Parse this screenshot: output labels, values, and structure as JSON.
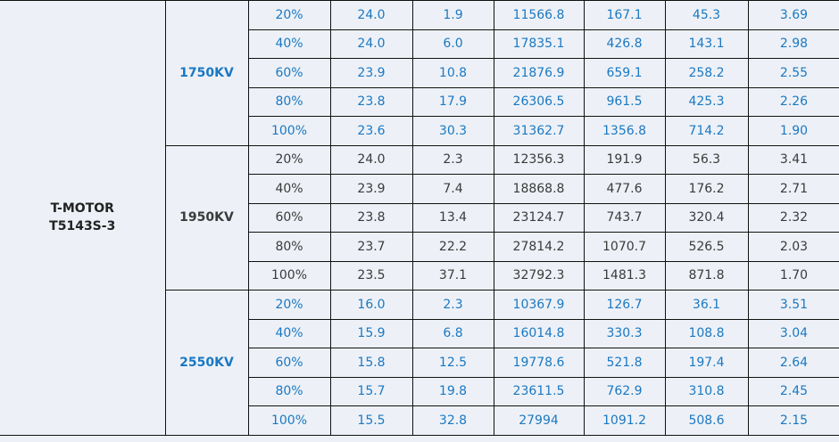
{
  "colors": {
    "accent_text": "#1b78c2",
    "normal_text": "#3a3a3a",
    "background": "#edf1f7",
    "border": "#111111"
  },
  "model": {
    "line1": "T-MOTOR",
    "line2": "T5143S-3"
  },
  "groups": [
    {
      "kv": "1750KV",
      "accent": true,
      "rows": [
        [
          "20%",
          "24.0",
          "1.9",
          "11566.8",
          "167.1",
          "45.3",
          "3.69"
        ],
        [
          "40%",
          "24.0",
          "6.0",
          "17835.1",
          "426.8",
          "143.1",
          "2.98"
        ],
        [
          "60%",
          "23.9",
          "10.8",
          "21876.9",
          "659.1",
          "258.2",
          "2.55"
        ],
        [
          "80%",
          "23.8",
          "17.9",
          "26306.5",
          "961.5",
          "425.3",
          "2.26"
        ],
        [
          "100%",
          "23.6",
          "30.3",
          "31362.7",
          "1356.8",
          "714.2",
          "1.90"
        ]
      ]
    },
    {
      "kv": "1950KV",
      "accent": false,
      "rows": [
        [
          "20%",
          "24.0",
          "2.3",
          "12356.3",
          "191.9",
          "56.3",
          "3.41"
        ],
        [
          "40%",
          "23.9",
          "7.4",
          "18868.8",
          "477.6",
          "176.2",
          "2.71"
        ],
        [
          "60%",
          "23.8",
          "13.4",
          "23124.7",
          "743.7",
          "320.4",
          "2.32"
        ],
        [
          "80%",
          "23.7",
          "22.2",
          "27814.2",
          "1070.7",
          "526.5",
          "2.03"
        ],
        [
          "100%",
          "23.5",
          "37.1",
          "32792.3",
          "1481.3",
          "871.8",
          "1.70"
        ]
      ]
    },
    {
      "kv": "2550KV",
      "accent": true,
      "rows": [
        [
          "20%",
          "16.0",
          "2.3",
          "10367.9",
          "126.7",
          "36.1",
          "3.51"
        ],
        [
          "40%",
          "15.9",
          "6.8",
          "16014.8",
          "330.3",
          "108.8",
          "3.04"
        ],
        [
          "60%",
          "15.8",
          "12.5",
          "19778.6",
          "521.8",
          "197.4",
          "2.64"
        ],
        [
          "80%",
          "15.7",
          "19.8",
          "23611.5",
          "762.9",
          "310.8",
          "2.45"
        ],
        [
          "100%",
          "15.5",
          "32.8",
          "27994",
          "1091.2",
          "508.6",
          "2.15"
        ]
      ]
    }
  ]
}
